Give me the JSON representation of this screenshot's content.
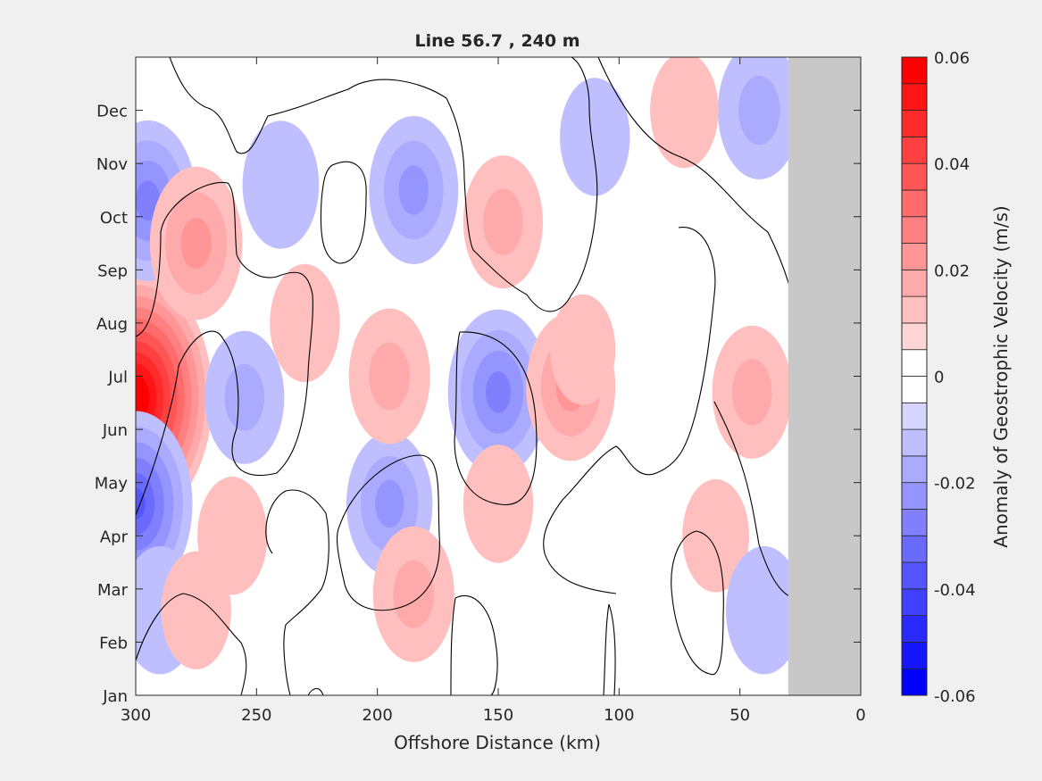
{
  "chart_data": {
    "type": "heatmap",
    "title": "Line 56.7 , 240 m",
    "xlabel": "Offshore Distance (km)",
    "ylabel": "",
    "xlim": [
      300,
      0
    ],
    "x_direction": "reversed",
    "x_ticks": [
      "300",
      "250",
      "200",
      "150",
      "100",
      "50",
      "0"
    ],
    "y_ticks": [
      "Jan",
      "Feb",
      "Mar",
      "Apr",
      "May",
      "Jun",
      "Jul",
      "Aug",
      "Sep",
      "Oct",
      "Nov",
      "Dec"
    ],
    "colorbar": {
      "label": "Anomaly of Geostrophic Velocity (m/s)",
      "range": [
        -0.06,
        0.06
      ],
      "levels": 24,
      "ticks": [
        "-0.06",
        "-0.04",
        "-0.02",
        "0",
        "0.02",
        "0.04",
        "0.06"
      ],
      "colormap": "blue-white-red"
    },
    "zero_contour": "black",
    "no_data_region": {
      "x_range": [
        30,
        0
      ],
      "color": "#c8c8c8"
    },
    "features": [
      {
        "x": 300,
        "month": 5.6,
        "value": 0.06
      },
      {
        "x": 295,
        "month": 9.3,
        "value": -0.025
      },
      {
        "x": 275,
        "month": 8.5,
        "value": 0.022
      },
      {
        "x": 255,
        "month": 5.6,
        "value": -0.014
      },
      {
        "x": 300,
        "month": 3.6,
        "value": -0.035
      },
      {
        "x": 290,
        "month": 1.6,
        "value": -0.012
      },
      {
        "x": 185,
        "month": 9.5,
        "value": -0.02
      },
      {
        "x": 150,
        "month": 5.7,
        "value": -0.027
      },
      {
        "x": 195,
        "month": 3.6,
        "value": -0.018
      },
      {
        "x": 195,
        "month": 6.0,
        "value": 0.015
      },
      {
        "x": 120,
        "month": 5.8,
        "value": 0.02
      },
      {
        "x": 148,
        "month": 8.9,
        "value": 0.014
      },
      {
        "x": 45,
        "month": 5.7,
        "value": 0.014
      },
      {
        "x": 42,
        "month": 11.0,
        "value": -0.016
      },
      {
        "x": 185,
        "month": 1.9,
        "value": 0.015
      },
      {
        "x": 73,
        "month": 11.0,
        "value": 0.007
      },
      {
        "x": 275,
        "month": 1.6,
        "value": 0.008
      },
      {
        "x": 110,
        "month": 10.5,
        "value": -0.008
      },
      {
        "x": 60,
        "month": 3.0,
        "value": 0.006
      },
      {
        "x": 240,
        "month": 9.6,
        "value": -0.012
      },
      {
        "x": 230,
        "month": 7.0,
        "value": 0.008
      },
      {
        "x": 260,
        "month": 3.0,
        "value": 0.008
      },
      {
        "x": 150,
        "month": 3.6,
        "value": 0.008
      },
      {
        "x": 115,
        "month": 6.5,
        "value": 0.005
      },
      {
        "x": 40,
        "month": 1.6,
        "value": -0.012
      }
    ]
  }
}
